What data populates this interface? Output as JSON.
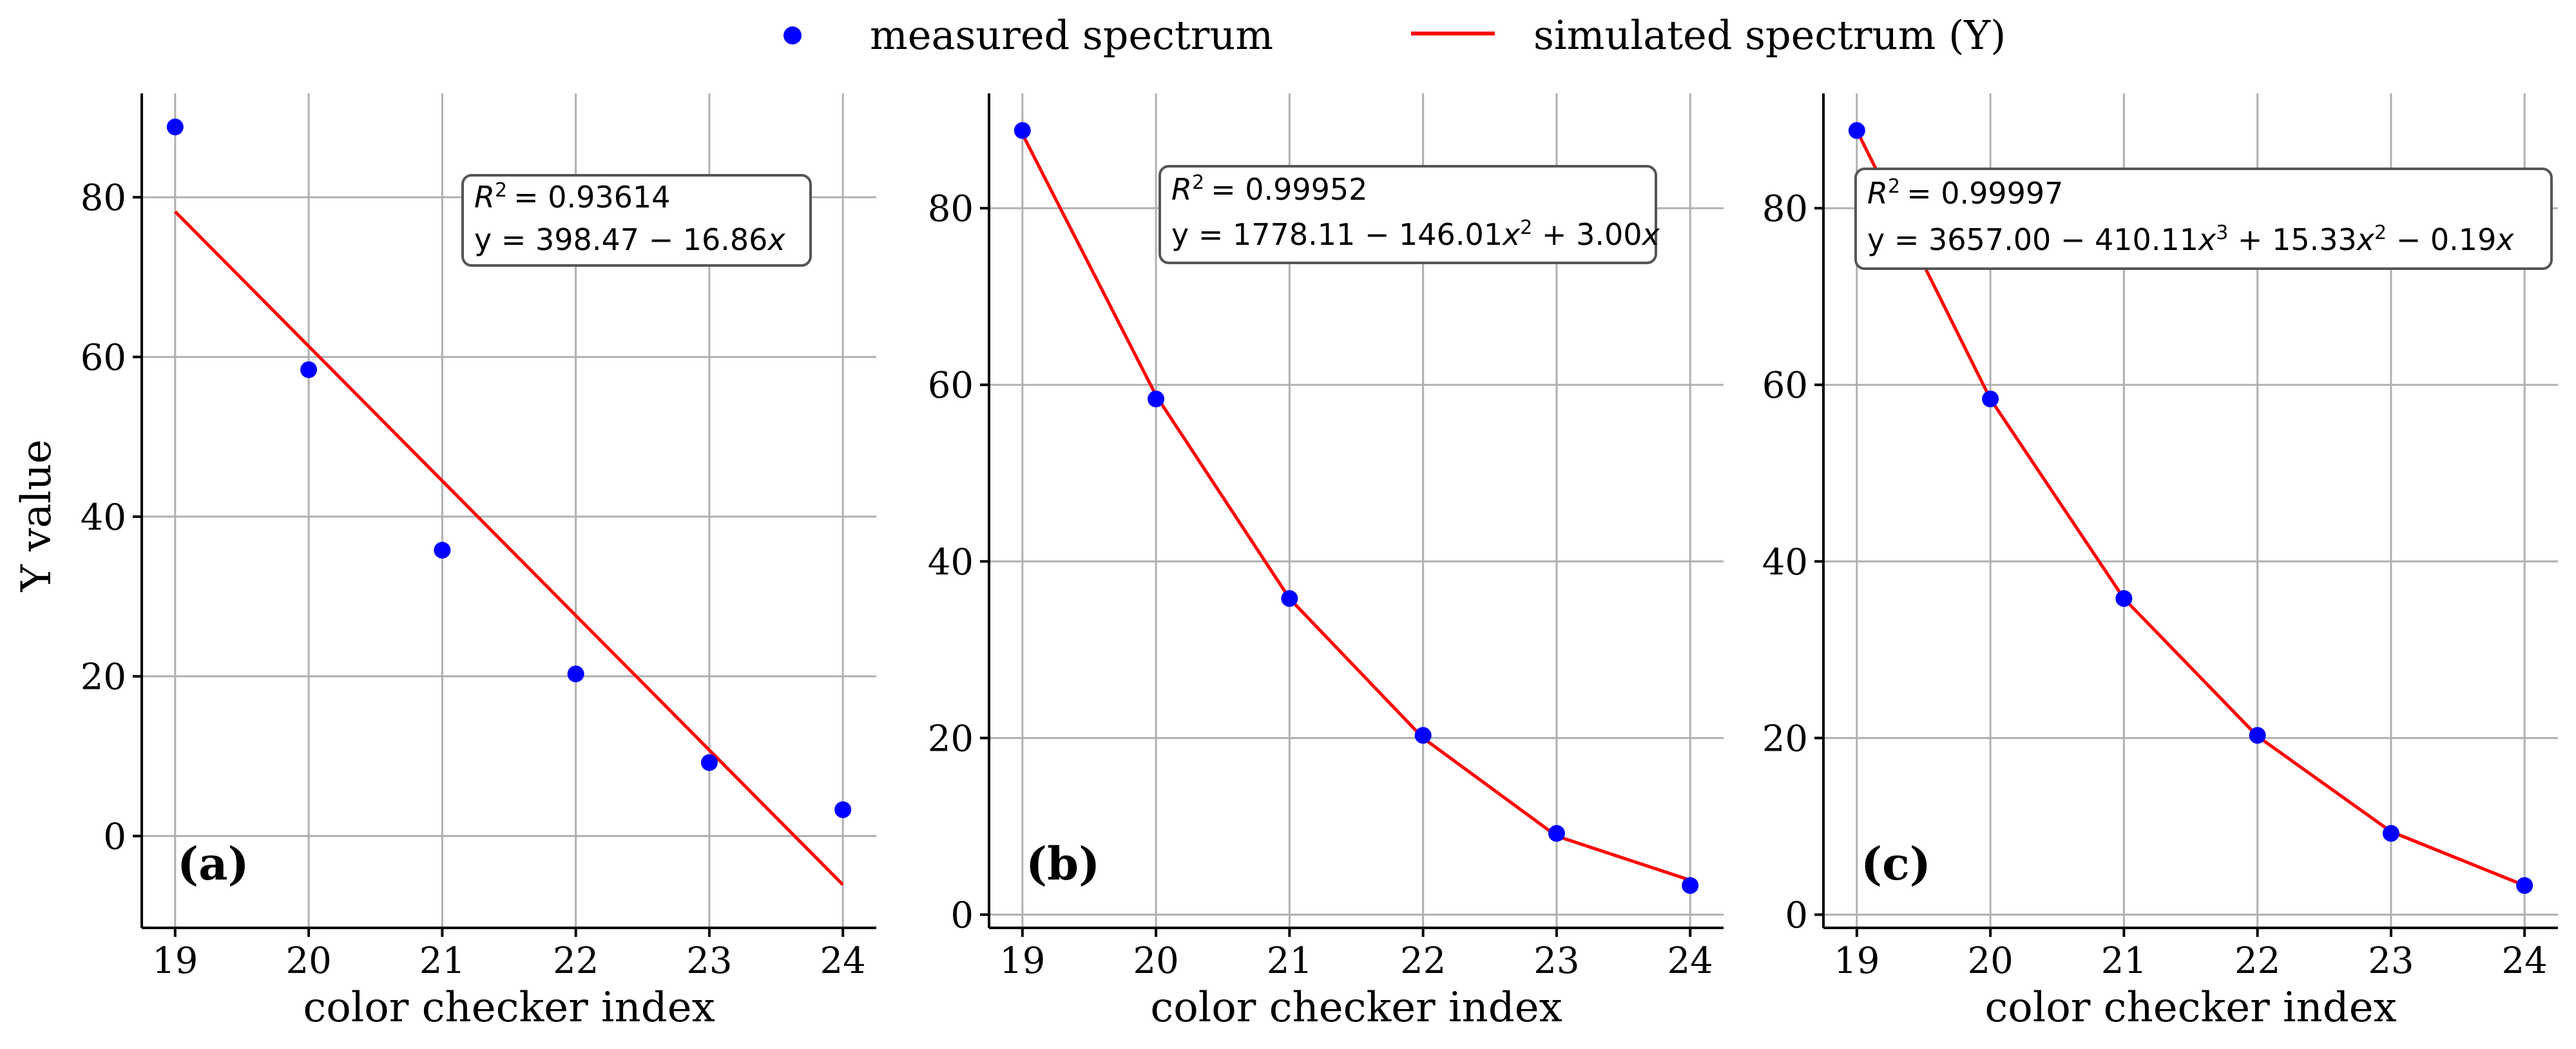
{
  "legend": {
    "measured_label": "measured spectrum",
    "simulated_label": "simulated spectrum (Y)",
    "position": "top-center",
    "colors": {
      "measured": "#0000ff",
      "simulated": "#ff0000"
    }
  },
  "chart_data": [
    {
      "type": "scatter+line",
      "panel_label": "(a)",
      "title": "",
      "xlabel": "color checker index",
      "ylabel": "Y value",
      "xlim": [
        18.75,
        24.25
      ],
      "ylim": [
        -11.5,
        93
      ],
      "xticks": [
        19,
        20,
        21,
        22,
        23,
        24
      ],
      "yticks": [
        0,
        20,
        40,
        60,
        80
      ],
      "grid": true,
      "series": [
        {
          "name": "measured spectrum",
          "kind": "scatter",
          "x": [
            19,
            20,
            21,
            22,
            23,
            24
          ],
          "y": [
            88.8,
            58.4,
            35.8,
            20.3,
            9.2,
            3.3
          ]
        },
        {
          "name": "simulated spectrum (Y)",
          "kind": "line",
          "x": [
            19,
            24
          ],
          "y": [
            78.2,
            -6.1
          ]
        }
      ],
      "annotation": {
        "r2_label": "R",
        "r2_value": "= 0.93614",
        "eq_prefix": "y = ",
        "eq_body": "398.47 − 16.86",
        "eq_suffix": ""
      }
    },
    {
      "type": "scatter+line",
      "panel_label": "(b)",
      "title": "",
      "xlabel": "color checker index",
      "ylabel": "",
      "xlim": [
        18.75,
        24.25
      ],
      "ylim": [
        -1.5,
        93
      ],
      "xticks": [
        19,
        20,
        21,
        22,
        23,
        24
      ],
      "yticks": [
        0,
        20,
        40,
        60,
        80
      ],
      "grid": true,
      "series": [
        {
          "name": "measured spectrum",
          "kind": "scatter",
          "x": [
            19,
            20,
            21,
            22,
            23,
            24
          ],
          "y": [
            88.8,
            58.4,
            35.8,
            20.3,
            9.2,
            3.3
          ]
        },
        {
          "name": "simulated spectrum (Y)",
          "kind": "line",
          "x": [
            19,
            20,
            21,
            22,
            23,
            24
          ],
          "y": [
            88.4,
            58.8,
            35.8,
            20.0,
            8.9,
            3.9
          ]
        }
      ],
      "annotation": {
        "r2_label": "R",
        "r2_value": "= 0.99952",
        "eq_prefix": "y = ",
        "eq_body": "1778.11 − 146.01",
        "eq_suffix": " + 3.00"
      }
    },
    {
      "type": "scatter+line",
      "panel_label": "(c)",
      "title": "",
      "xlabel": "color checker index",
      "ylabel": "",
      "xlim": [
        18.75,
        24.25
      ],
      "ylim": [
        -1.5,
        93
      ],
      "xticks": [
        19,
        20,
        21,
        22,
        23,
        24
      ],
      "yticks": [
        0,
        20,
        40,
        60,
        80
      ],
      "grid": true,
      "series": [
        {
          "name": "measured spectrum",
          "kind": "scatter",
          "x": [
            19,
            20,
            21,
            22,
            23,
            24
          ],
          "y": [
            88.8,
            58.4,
            35.8,
            20.3,
            9.2,
            3.3
          ]
        },
        {
          "name": "simulated spectrum (Y)",
          "kind": "line",
          "x": [
            19,
            20,
            21,
            22,
            23,
            24
          ],
          "y": [
            88.8,
            58.4,
            35.8,
            20.2,
            9.4,
            3.3
          ]
        }
      ],
      "annotation": {
        "r2_label": "R",
        "r2_value": "= 0.99997",
        "eq_prefix": "y = ",
        "eq_body": "3657.00 − 410.11",
        "eq_suffix": " + 15.33",
        "eq_suffix2": " − 0.19"
      }
    }
  ]
}
